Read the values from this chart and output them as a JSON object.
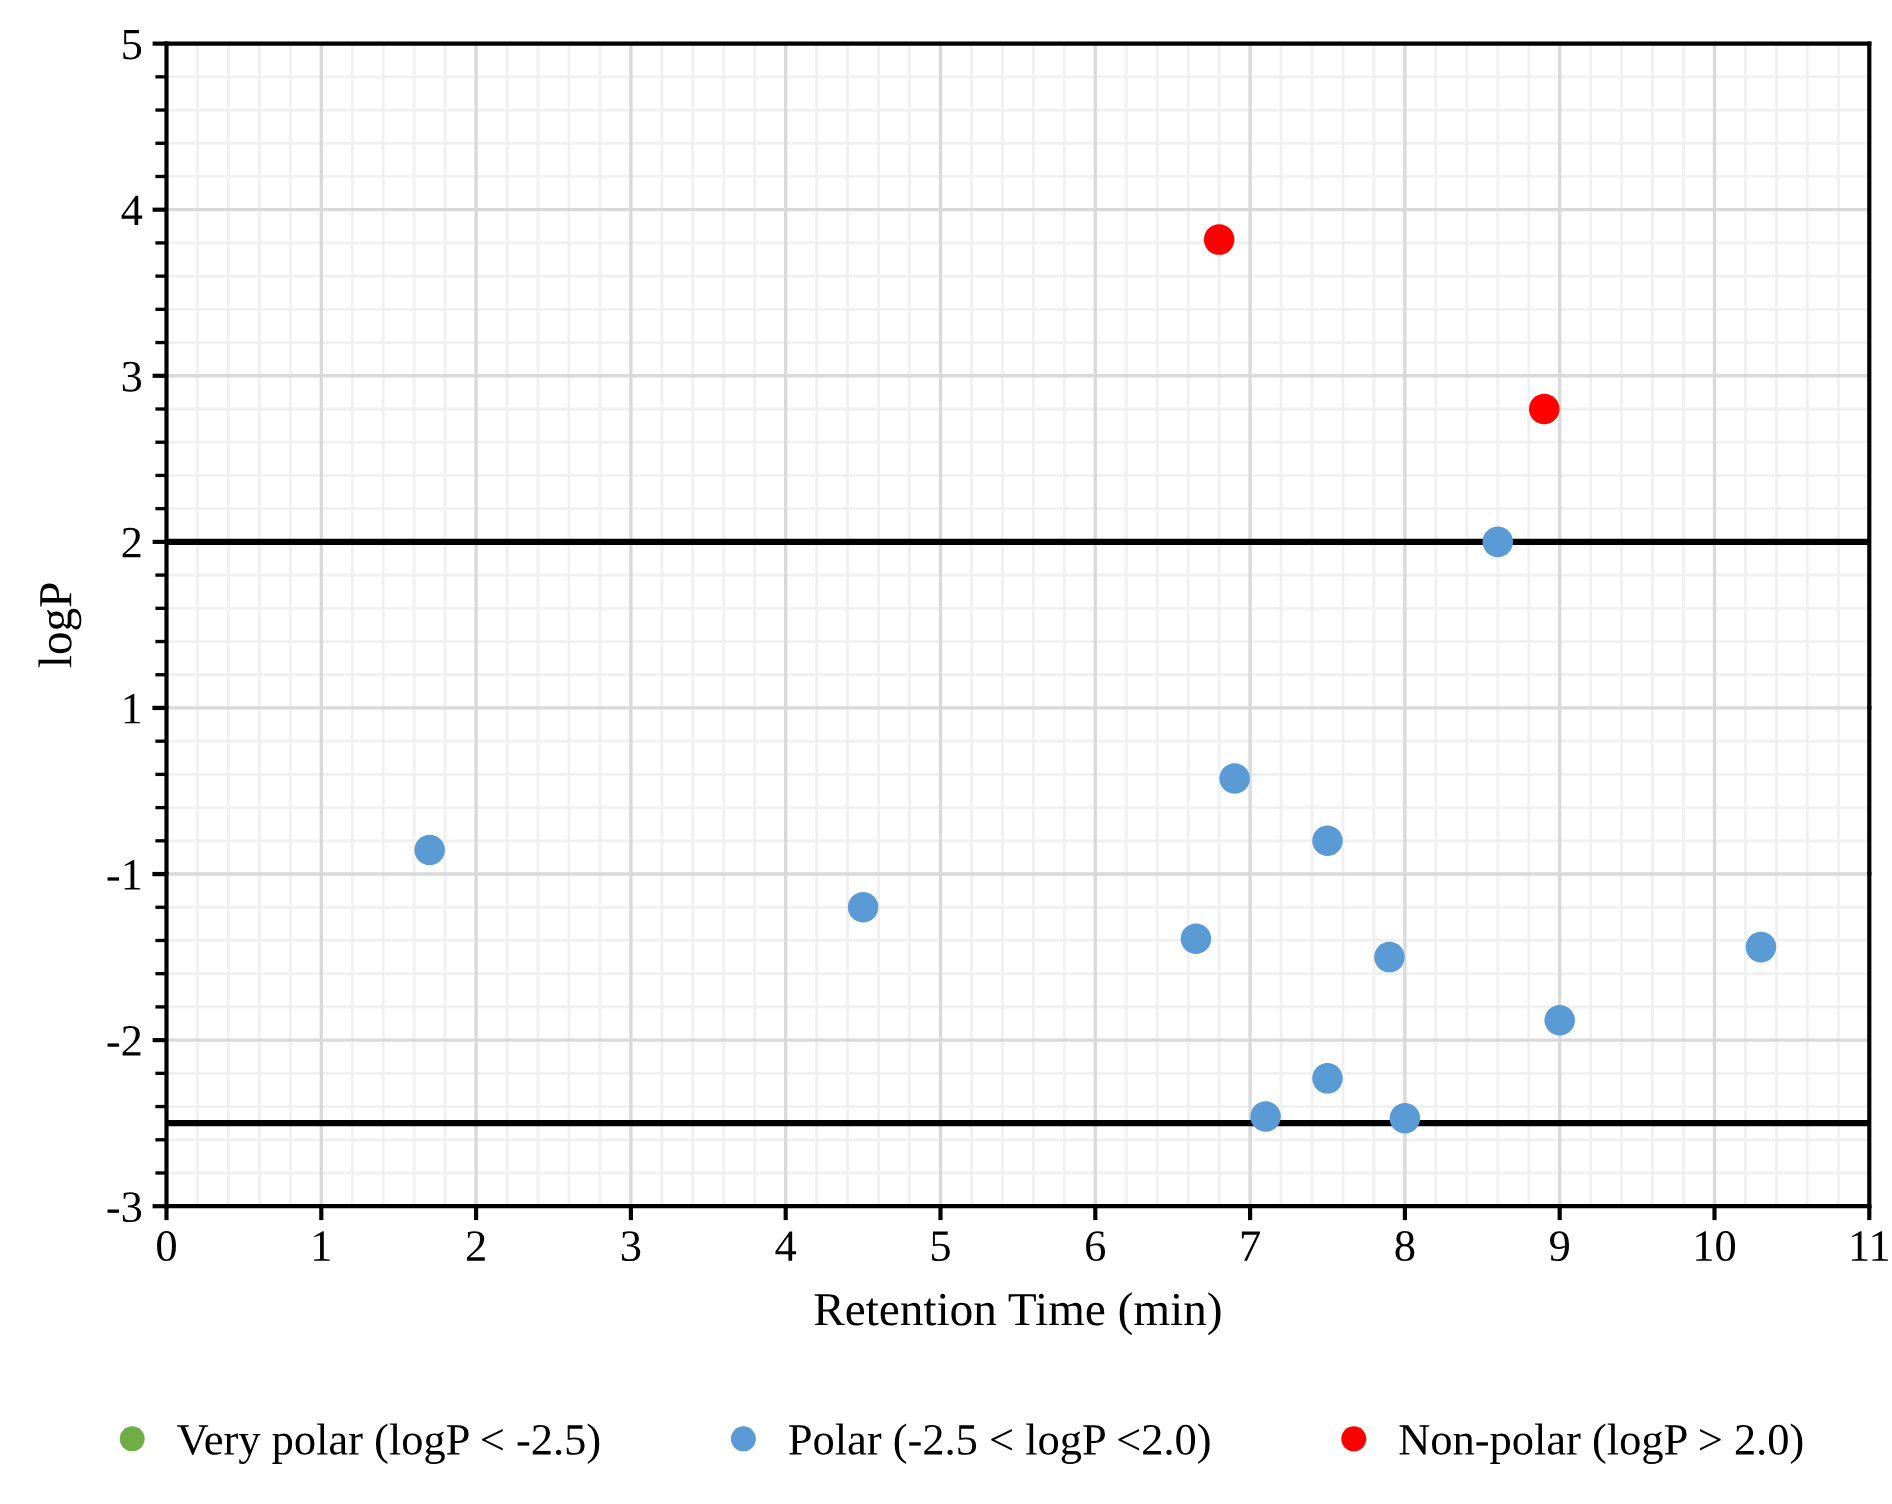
{
  "chart_data": [
    {
      "type": "scatter",
      "ylabel": "logP",
      "xlim": [
        0,
        11
      ],
      "xticks": [
        0,
        1,
        2,
        3,
        4,
        5,
        6,
        7,
        8,
        9,
        10,
        11
      ],
      "ylim": [
        1,
        5
      ],
      "yticks": [
        5,
        4,
        3,
        2,
        {
          "value": 1,
          "label": null
        }
      ],
      "grid": true,
      "marker": "circle",
      "tick_labels": "y",
      "ref_lines": [
        {
          "axis": "y",
          "value": 2.0,
          "color": "#000000"
        }
      ],
      "series": [
        {
          "color": "#5b9bd5",
          "x": [
            8.6
          ],
          "values": [
            2.0
          ]
        },
        {
          "color": "#ff0000",
          "x": [
            6.8,
            8.9
          ],
          "values": [
            3.82,
            2.8
          ]
        }
      ]
    },
    {
      "type": "scatter",
      "xlim": [
        0,
        11
      ],
      "xticks": [
        0,
        1,
        2,
        3,
        4,
        5,
        6,
        7,
        8,
        9,
        10,
        11
      ],
      "ylim": [
        -1,
        1
      ],
      "yticks": [
        1,
        -1
      ],
      "grid": true,
      "marker": "circle",
      "tick_labels": "y",
      "series": [
        {
          "color": "#5b9bd5",
          "x": [
            1.7,
            6.9,
            7.5
          ],
          "values": [
            -0.71,
            0.15,
            -0.6
          ]
        }
      ]
    },
    {
      "type": "scatter",
      "xlabel": "Retention Time (min)",
      "xlim": [
        0,
        11
      ],
      "xticks": [
        0,
        1,
        2,
        3,
        4,
        5,
        6,
        7,
        8,
        9,
        10,
        11
      ],
      "ylim": [
        -3,
        -1
      ],
      "yticks": [
        {
          "value": -1,
          "label": null
        },
        -2,
        -3
      ],
      "grid": true,
      "legend": "bottom",
      "marker": "circle",
      "ref_lines": [
        {
          "axis": "y",
          "value": -2.5,
          "color": "#000000"
        }
      ],
      "series": [
        {
          "name": "Very polar (logP < -2.5)",
          "color": "#70ad47"
        },
        {
          "name": "Polar (-2.5 < logP <2.0)",
          "color": "#5b9bd5",
          "x": [
            4.5,
            6.65,
            7.1,
            7.5,
            7.9,
            8.0,
            9.0,
            10.3
          ],
          "values": [
            -1.2,
            -1.39,
            -2.46,
            -2.23,
            -1.5,
            -2.47,
            -1.88,
            -1.44
          ]
        },
        {
          "name": "Non-polar (logP > 2.0)",
          "color": "#ff0000"
        }
      ]
    }
  ]
}
